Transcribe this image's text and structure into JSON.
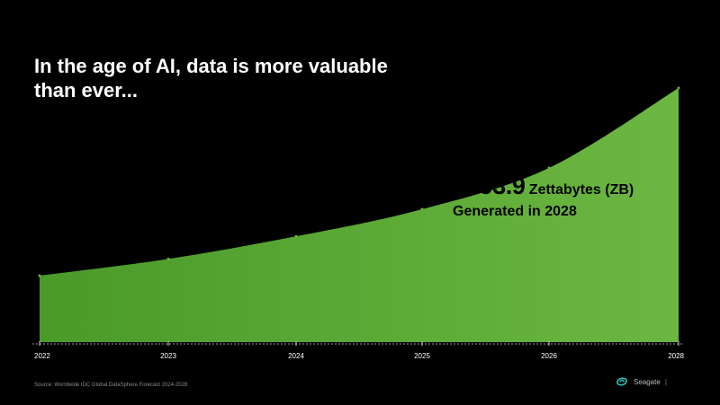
{
  "slide": {
    "title": "In the age of AI, data is more valuable than ever...",
    "callout": {
      "value": "~393.9",
      "unit": "Zettabytes (ZB)",
      "line2": "Generated in 2028"
    },
    "source": "Source: Worldwide IDC Global DataSphere Forecast 2024-2028",
    "brand": {
      "name": "Seagate",
      "separator": "|",
      "logo_icon": "seagate-swirl-icon"
    }
  },
  "chart_data": {
    "type": "area",
    "title": "",
    "xlabel": "",
    "ylabel": "",
    "categories": [
      "2022",
      "2023",
      "2024",
      "2025",
      "2026",
      "2028"
    ],
    "values": [
      103,
      129,
      164,
      206,
      270,
      393.9
    ],
    "ylim": [
      0,
      393.9
    ],
    "fill_color": "#6ab33f",
    "axis_color": "#ffffff",
    "grid": false,
    "legend": "none"
  }
}
